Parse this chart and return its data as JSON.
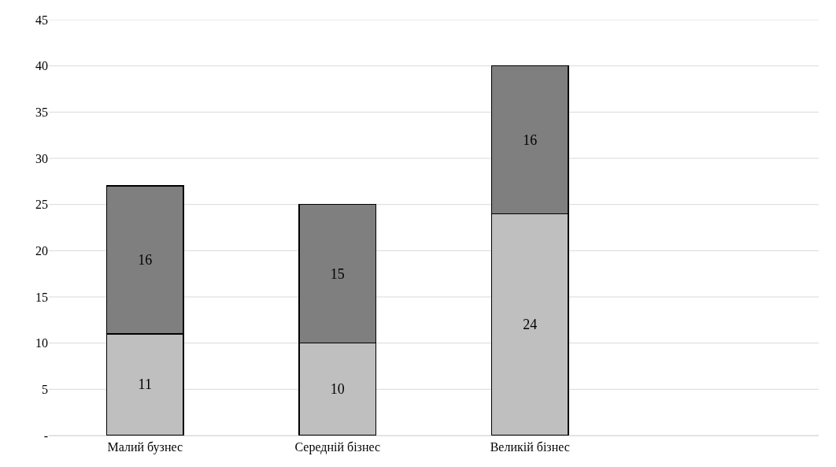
{
  "chart_data": {
    "type": "bar",
    "stacked": true,
    "categories": [
      "Малий бузнес",
      "Середній бізнес",
      "Великій бізнес",
      null
    ],
    "series": [
      {
        "color": "#bfbfbf",
        "values": [
          11,
          10,
          24,
          null
        ]
      },
      {
        "color": "#7f7f7f",
        "values": [
          16,
          15,
          16,
          null
        ]
      }
    ],
    "ylim": [
      0,
      45
    ],
    "yticks": [
      {
        "value": 0,
        "label": "-"
      },
      5,
      10,
      15,
      20,
      25,
      30,
      35,
      40,
      45
    ],
    "grid": "y",
    "data_labels": true
  }
}
